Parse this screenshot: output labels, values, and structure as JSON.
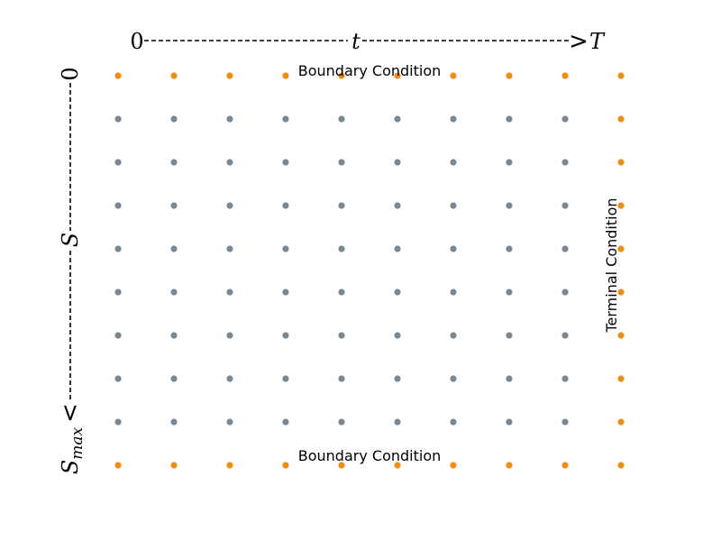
{
  "time_axis": {
    "start_label": "0",
    "mid_label": "t",
    "end_label": "T",
    "arrow_glyph": ">"
  },
  "price_axis": {
    "start_label": "0",
    "mid_label": "S",
    "end_label_base": "S",
    "end_label_sub": "max",
    "arrow_glyph": "<"
  },
  "labels": {
    "boundary_top": "Boundary Condition",
    "boundary_bottom": "Boundary Condition",
    "terminal": "Terminal Condition"
  },
  "grid": {
    "columns": 10,
    "rows": 10,
    "interior_color": "#778899",
    "boundary_color": "#f28c0f"
  }
}
